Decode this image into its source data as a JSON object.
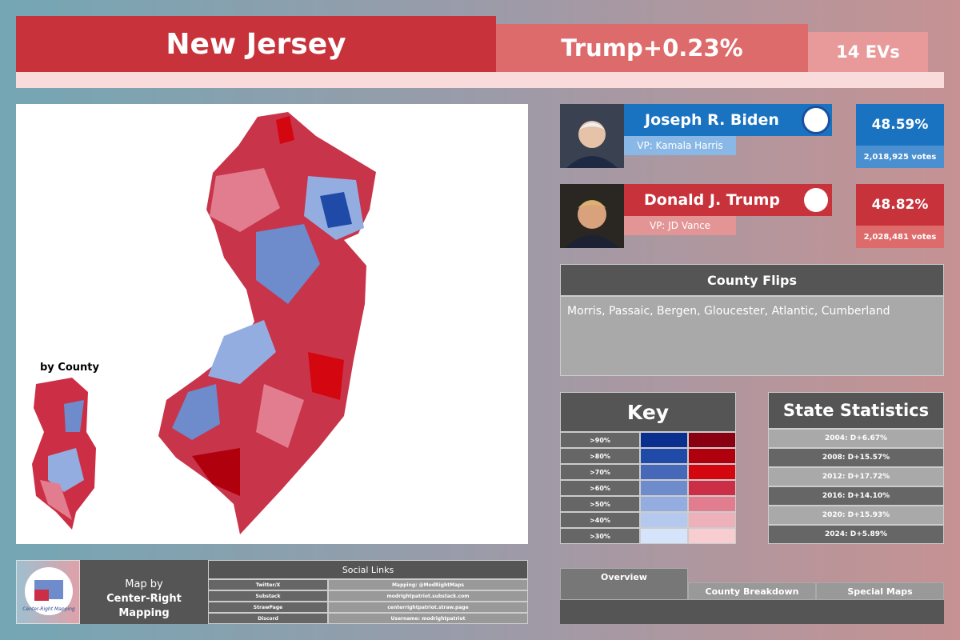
{
  "header": {
    "state": "New Jersey",
    "margin": "Trump+0.23%",
    "electoral_votes": "14 EVs"
  },
  "candidates": [
    {
      "name": "Joseph R. Biden",
      "running_mate": "VP: Kamala Harris",
      "percent": "48.59%",
      "votes": "2,018,925 votes"
    },
    {
      "name": "Donald J. Trump",
      "running_mate": "VP: JD Vance",
      "percent": "48.82%",
      "votes": "2,028,481 votes"
    }
  ],
  "map": {
    "inset_label": "by County"
  },
  "county_flips": {
    "title": "County Flips",
    "text": "Morris, Passaic, Bergen, Gloucester, Atlantic, Cumberland"
  },
  "key": {
    "title": "Key",
    "rows": [
      {
        "label": ">90%",
        "blue_color": "#0b2f8f",
        "red_color": "#8a0010"
      },
      {
        "label": ">80%",
        "blue_color": "#1f4aa8",
        "red_color": "#b0000e"
      },
      {
        "label": ">70%",
        "blue_color": "#4569b8",
        "red_color": "#d4060f"
      },
      {
        "label": ">60%",
        "blue_color": "#6e8bcb",
        "red_color": "#cc2f45"
      },
      {
        "label": ">50%",
        "blue_color": "#94ade0",
        "red_color": "#e27d8f"
      },
      {
        "label": ">40%",
        "blue_color": "#b5c8ee",
        "red_color": "#eeb0bb"
      },
      {
        "label": ">30%",
        "blue_color": "#d6e4fb",
        "red_color": "#f8cdd2"
      }
    ]
  },
  "state_statistics": {
    "title": "State Statistics",
    "rows": [
      "2004: D+6.67%",
      "2008: D+15.57%",
      "2012: D+17.72%",
      "2016: D+14.10%",
      "2020: D+15.93%",
      "2024: D+5.89%"
    ]
  },
  "credits": {
    "line1": "Map by",
    "line2": "Center-Right Mapping",
    "logo_text": "Center-Right Mapping"
  },
  "social_links": {
    "title": "Social Links",
    "rows": [
      [
        "Twitter/X",
        "Mapping: @ModRightMaps"
      ],
      [
        "Substack",
        "modrightpatriot.substack.com"
      ],
      [
        "StrawPage",
        "centerrightpatriot.straw.page"
      ],
      [
        "Discord",
        "Username: modrightpatriot"
      ]
    ]
  },
  "tabs": [
    "Overview",
    "County Breakdown",
    "Special Maps"
  ]
}
